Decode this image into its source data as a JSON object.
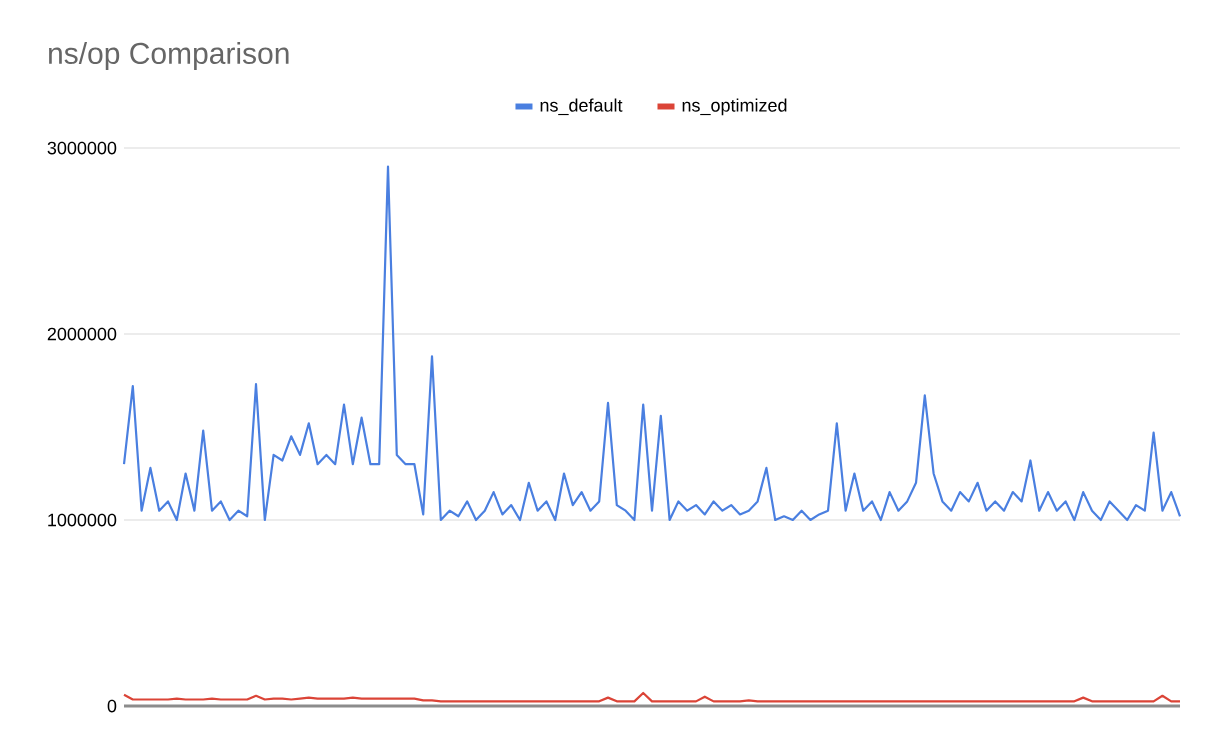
{
  "chart_data": {
    "type": "line",
    "title": "ns/op Comparison",
    "categories": [
      null,
      null,
      null,
      null,
      null,
      null,
      null,
      null,
      null,
      null,
      null,
      null,
      null,
      null,
      null,
      null,
      null,
      null,
      null,
      null,
      null,
      null,
      null,
      null,
      null,
      null,
      null,
      null,
      null,
      null,
      null,
      null,
      null,
      null,
      null,
      null,
      null,
      null,
      null,
      null,
      null,
      null,
      null,
      null,
      null,
      null,
      null,
      null,
      null,
      null,
      null,
      null,
      null,
      null,
      null,
      null,
      null,
      null,
      null,
      null,
      null,
      null,
      null,
      null,
      null,
      null,
      null,
      null,
      null,
      null,
      null,
      null,
      null,
      null,
      null,
      null,
      null,
      null,
      null,
      null,
      null,
      null,
      null,
      null,
      null,
      null,
      null,
      null,
      null,
      null,
      null,
      null,
      null,
      null,
      null,
      null,
      null,
      null,
      null,
      null,
      null,
      null,
      null,
      null,
      null,
      null,
      null,
      null,
      null,
      null,
      null,
      null,
      null,
      null,
      null,
      null,
      null,
      null,
      null,
      null,
      null
    ],
    "series": [
      {
        "name": "ns_default",
        "color": "#4a7fe0",
        "values": [
          1300000,
          1720000,
          1050000,
          1280000,
          1050000,
          1100000,
          1000000,
          1250000,
          1050000,
          1480000,
          1050000,
          1100000,
          1000000,
          1050000,
          1020000,
          1730000,
          1000000,
          1350000,
          1320000,
          1450000,
          1350000,
          1520000,
          1300000,
          1350000,
          1300000,
          1620000,
          1300000,
          1550000,
          1300000,
          1300000,
          2900000,
          1350000,
          1300000,
          1300000,
          1030000,
          1880000,
          1000000,
          1050000,
          1020000,
          1100000,
          1000000,
          1050000,
          1150000,
          1030000,
          1080000,
          1000000,
          1200000,
          1050000,
          1100000,
          1000000,
          1250000,
          1080000,
          1150000,
          1050000,
          1100000,
          1630000,
          1080000,
          1050000,
          1000000,
          1620000,
          1050000,
          1560000,
          1000000,
          1100000,
          1050000,
          1080000,
          1030000,
          1100000,
          1050000,
          1080000,
          1030000,
          1050000,
          1100000,
          1280000,
          1000000,
          1020000,
          1000000,
          1050000,
          1000000,
          1030000,
          1050000,
          1520000,
          1050000,
          1250000,
          1050000,
          1100000,
          1000000,
          1150000,
          1050000,
          1100000,
          1200000,
          1670000,
          1250000,
          1100000,
          1050000,
          1150000,
          1100000,
          1200000,
          1050000,
          1100000,
          1050000,
          1150000,
          1100000,
          1320000,
          1050000,
          1150000,
          1050000,
          1100000,
          1000000,
          1150000,
          1050000,
          1000000,
          1100000,
          1050000,
          1000000,
          1080000,
          1050000,
          1470000,
          1050000,
          1150000,
          1020000
        ]
      },
      {
        "name": "ns_optimized",
        "color": "#db4437",
        "values": [
          60000,
          35000,
          35000,
          35000,
          35000,
          35000,
          40000,
          35000,
          35000,
          35000,
          40000,
          35000,
          35000,
          35000,
          35000,
          55000,
          35000,
          40000,
          40000,
          35000,
          40000,
          45000,
          40000,
          40000,
          40000,
          40000,
          45000,
          40000,
          40000,
          40000,
          40000,
          40000,
          40000,
          40000,
          30000,
          30000,
          25000,
          25000,
          25000,
          25000,
          25000,
          25000,
          25000,
          25000,
          25000,
          25000,
          25000,
          25000,
          25000,
          25000,
          25000,
          25000,
          25000,
          25000,
          25000,
          45000,
          25000,
          25000,
          25000,
          70000,
          25000,
          25000,
          25000,
          25000,
          25000,
          25000,
          50000,
          25000,
          25000,
          25000,
          25000,
          30000,
          25000,
          25000,
          25000,
          25000,
          25000,
          25000,
          25000,
          25000,
          25000,
          25000,
          25000,
          25000,
          25000,
          25000,
          25000,
          25000,
          25000,
          25000,
          25000,
          25000,
          25000,
          25000,
          25000,
          25000,
          25000,
          25000,
          25000,
          25000,
          25000,
          25000,
          25000,
          25000,
          25000,
          25000,
          25000,
          25000,
          25000,
          45000,
          25000,
          25000,
          25000,
          25000,
          25000,
          25000,
          25000,
          25000,
          55000,
          25000,
          25000
        ]
      }
    ],
    "ylim": [
      0,
      3000000
    ],
    "yticks": [
      0,
      1000000,
      2000000,
      3000000
    ],
    "grid": "y",
    "legend": "top",
    "tick_labels": "y"
  }
}
